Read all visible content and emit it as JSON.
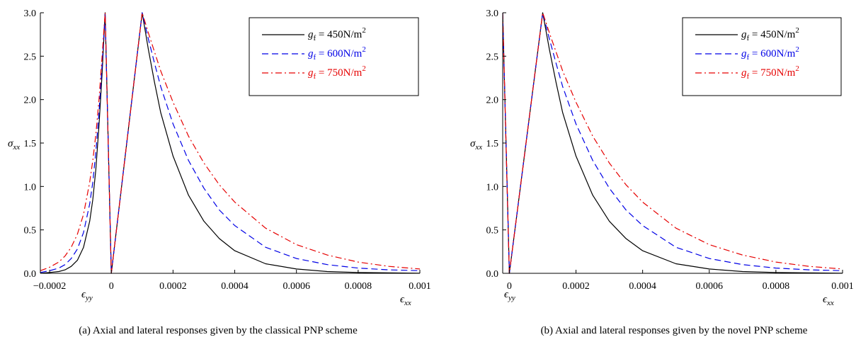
{
  "chart_data": [
    {
      "type": "line",
      "caption": "(a)  Axial and lateral responses given by the classical PNP scheme",
      "ylabel": {
        "main": "σ",
        "sub": "xx"
      },
      "xlabel_right": {
        "main": "ϵ",
        "sub": "xx"
      },
      "xlabel_left": {
        "main": "ϵ",
        "sub": "yy"
      },
      "xlim": [
        -0.00023,
        0.001
      ],
      "ylim": [
        0,
        3
      ],
      "xticks": [
        -0.0002,
        0,
        0.0002,
        0.0004,
        0.0006,
        0.0008,
        0.001
      ],
      "xtick_labels": [
        "−0.0002",
        "0",
        "0.0002",
        "0.0004",
        "0.0006",
        "0.0008",
        "0.001"
      ],
      "yticks": [
        0,
        0.5,
        1.0,
        1.5,
        2.0,
        2.5,
        3.0
      ],
      "ytick_labels": [
        "0.0",
        "0.5",
        "1.0",
        "1.5",
        "2.0",
        "2.5",
        "3.0"
      ],
      "legend_position": "top-right",
      "series": [
        {
          "name_main": "g",
          "name_sub": "f",
          "name_rest": " = 450N/m",
          "name_sup": "2",
          "color": "#000000",
          "dash": "",
          "x": [
            -0.00023,
            -0.0002,
            -0.00017,
            -0.00015,
            -0.00013,
            -0.00011,
            -9e-05,
            -7e-05,
            -6e-05,
            -5e-05,
            -4e-05,
            -3e-05,
            -2e-05,
            0.0,
            0.0001,
            0.00012,
            0.00014,
            0.00016,
            0.0002,
            0.00025,
            0.0003,
            0.00035,
            0.0004,
            0.0005,
            0.0006,
            0.0007,
            0.0008,
            0.0009,
            0.001
          ],
          "y": [
            0.0,
            0.01,
            0.02,
            0.04,
            0.08,
            0.15,
            0.3,
            0.6,
            0.85,
            1.2,
            1.7,
            2.3,
            3.0,
            0.0,
            3.0,
            2.58,
            2.2,
            1.85,
            1.35,
            0.9,
            0.6,
            0.4,
            0.26,
            0.11,
            0.05,
            0.02,
            0.01,
            0.005,
            0.002
          ]
        },
        {
          "name_main": "g",
          "name_sub": "f",
          "name_rest": " = 600N/m",
          "name_sup": "2",
          "color": "#0000e6",
          "dash": "9,5",
          "x": [
            -0.00023,
            -0.0002,
            -0.00017,
            -0.00015,
            -0.00013,
            -0.00011,
            -9e-05,
            -7e-05,
            -6e-05,
            -5e-05,
            -4e-05,
            -3e-05,
            -2e-05,
            0.0,
            0.0001,
            0.00012,
            0.00014,
            0.00016,
            0.0002,
            0.00025,
            0.0003,
            0.00035,
            0.0004,
            0.0005,
            0.0006,
            0.0007,
            0.0008,
            0.0009,
            0.001
          ],
          "y": [
            0.01,
            0.03,
            0.06,
            0.1,
            0.17,
            0.28,
            0.47,
            0.8,
            1.05,
            1.4,
            1.85,
            2.4,
            3.0,
            0.0,
            3.0,
            2.7,
            2.42,
            2.15,
            1.72,
            1.3,
            0.98,
            0.73,
            0.55,
            0.3,
            0.17,
            0.1,
            0.06,
            0.04,
            0.03
          ]
        },
        {
          "name_main": "g",
          "name_sub": "f",
          "name_rest": " = 750N/m",
          "name_sup": "2",
          "color": "#e60000",
          "dash": "9,4,2,4",
          "x": [
            -0.00023,
            -0.0002,
            -0.00017,
            -0.00015,
            -0.00013,
            -0.00011,
            -9e-05,
            -7e-05,
            -6e-05,
            -5e-05,
            -4e-05,
            -3e-05,
            -2e-05,
            0.0,
            0.0001,
            0.00012,
            0.00014,
            0.00016,
            0.0002,
            0.00025,
            0.0003,
            0.00035,
            0.0004,
            0.0005,
            0.0006,
            0.0007,
            0.0008,
            0.0009,
            0.001
          ],
          "y": [
            0.03,
            0.07,
            0.13,
            0.2,
            0.3,
            0.45,
            0.68,
            1.05,
            1.3,
            1.6,
            2.0,
            2.5,
            3.0,
            0.0,
            3.0,
            2.77,
            2.55,
            2.33,
            1.97,
            1.58,
            1.27,
            1.02,
            0.82,
            0.52,
            0.33,
            0.21,
            0.13,
            0.08,
            0.05
          ]
        }
      ]
    },
    {
      "type": "line",
      "caption": "(b)  Axial and lateral responses given by the novel PNP scheme",
      "ylabel": {
        "main": "σ",
        "sub": "xx"
      },
      "xlabel_right": {
        "main": "ϵ",
        "sub": "xx"
      },
      "xlabel_left": {
        "main": "ϵ",
        "sub": "yy"
      },
      "xlim": [
        -2e-05,
        0.001
      ],
      "ylim": [
        0,
        3
      ],
      "xticks": [
        0,
        0.0002,
        0.0004,
        0.0006,
        0.0008,
        0.001
      ],
      "xtick_labels": [
        "0",
        "0.0002",
        "0.0004",
        "0.0006",
        "0.0008",
        "0.001"
      ],
      "yticks": [
        0,
        0.5,
        1.0,
        1.5,
        2.0,
        2.5,
        3.0
      ],
      "ytick_labels": [
        "0.0",
        "0.5",
        "1.0",
        "1.5",
        "2.0",
        "2.5",
        "3.0"
      ],
      "legend_position": "top-right",
      "series": [
        {
          "name_main": "g",
          "name_sub": "f",
          "name_rest": " = 450N/m",
          "name_sup": "2",
          "color": "#000000",
          "dash": "",
          "x": [
            -2e-05,
            -1e-05,
            0.0,
            0.0001,
            0.00012,
            0.00014,
            0.00016,
            0.0002,
            0.00025,
            0.0003,
            0.00035,
            0.0004,
            0.0005,
            0.0006,
            0.0007,
            0.0008,
            0.0009,
            0.001
          ],
          "y": [
            3.0,
            1.5,
            0.0,
            3.0,
            2.58,
            2.2,
            1.85,
            1.35,
            0.9,
            0.6,
            0.4,
            0.26,
            0.11,
            0.05,
            0.02,
            0.01,
            0.005,
            0.002
          ]
        },
        {
          "name_main": "g",
          "name_sub": "f",
          "name_rest": " = 600N/m",
          "name_sup": "2",
          "color": "#0000e6",
          "dash": "9,5",
          "x": [
            -2e-05,
            -1e-05,
            0.0,
            0.0001,
            0.00012,
            0.00014,
            0.00016,
            0.0002,
            0.00025,
            0.0003,
            0.00035,
            0.0004,
            0.0005,
            0.0006,
            0.0007,
            0.0008,
            0.0009,
            0.001
          ],
          "y": [
            3.0,
            1.5,
            0.0,
            3.0,
            2.7,
            2.42,
            2.15,
            1.72,
            1.3,
            0.98,
            0.73,
            0.55,
            0.3,
            0.17,
            0.1,
            0.06,
            0.04,
            0.03
          ]
        },
        {
          "name_main": "g",
          "name_sub": "f",
          "name_rest": " = 750N/m",
          "name_sup": "2",
          "color": "#e60000",
          "dash": "9,4,2,4",
          "x": [
            -2e-05,
            -1e-05,
            0.0,
            0.0001,
            0.00012,
            0.00014,
            0.00016,
            0.0002,
            0.00025,
            0.0003,
            0.00035,
            0.0004,
            0.0005,
            0.0006,
            0.0007,
            0.0008,
            0.0009,
            0.001
          ],
          "y": [
            3.0,
            1.5,
            0.0,
            3.0,
            2.77,
            2.55,
            2.33,
            1.97,
            1.58,
            1.27,
            1.02,
            0.82,
            0.52,
            0.33,
            0.21,
            0.13,
            0.08,
            0.05
          ]
        }
      ]
    }
  ]
}
